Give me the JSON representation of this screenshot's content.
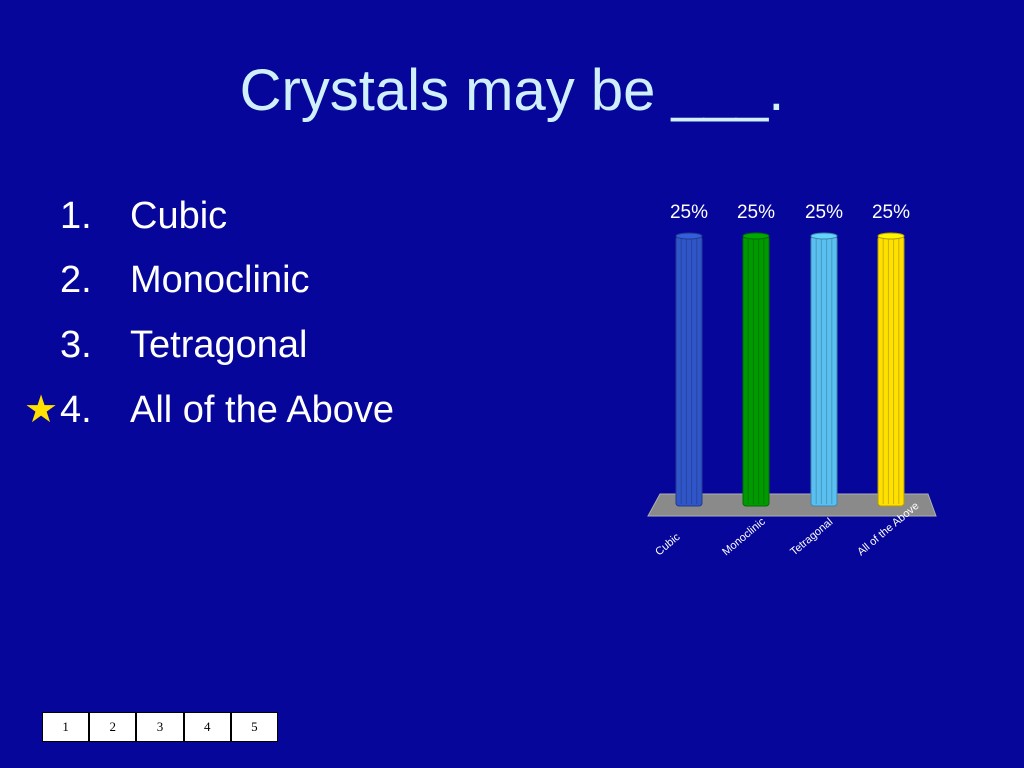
{
  "slide": {
    "title": "Crystals may be ___."
  },
  "options": [
    {
      "number": "1.",
      "text": "Cubic",
      "correct": false
    },
    {
      "number": "2.",
      "text": "Monoclinic",
      "correct": false
    },
    {
      "number": "3.",
      "text": "Tetragonal",
      "correct": false
    },
    {
      "number": "4.",
      "text": "All of the Above",
      "correct": true
    }
  ],
  "correct_marker": {
    "icon": "star-icon",
    "glyph": "★",
    "color": "#ffe000"
  },
  "chart_data": {
    "type": "bar",
    "categories": [
      "Cubic",
      "Monoclinic",
      "Tetragonal",
      "All of the Above"
    ],
    "values": [
      25,
      25,
      25,
      25
    ],
    "value_labels": [
      "25%",
      "25%",
      "25%",
      "25%"
    ],
    "colors": [
      "#2f55c8",
      "#009a00",
      "#5ac0f0",
      "#ffe000"
    ],
    "ylim": [
      0,
      25
    ],
    "grid": false,
    "legend": "none"
  },
  "pager": {
    "pages": [
      "1",
      "2",
      "3",
      "4",
      "5"
    ]
  }
}
